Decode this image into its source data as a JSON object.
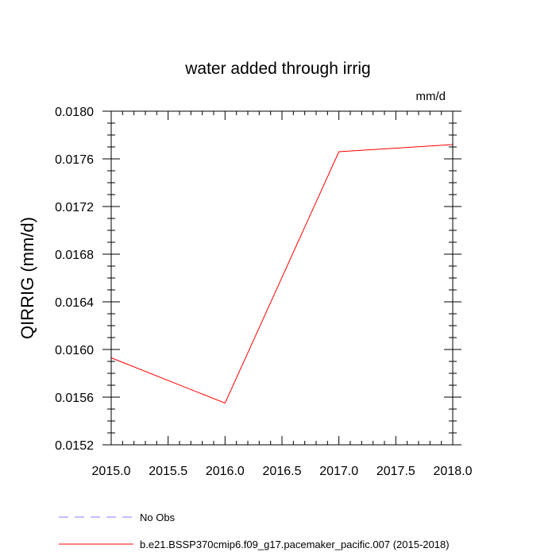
{
  "chart_data": {
    "type": "line",
    "title": "water added through irrig",
    "units": "mm/d",
    "xlabel": "",
    "ylabel": "QIRRIG  (mm/d)",
    "xlim": [
      2015.0,
      2018.0
    ],
    "ylim": [
      0.0152,
      0.018
    ],
    "x_major_ticks": [
      2015.0,
      2015.5,
      2016.0,
      2016.5,
      2017.0,
      2017.5,
      2018.0
    ],
    "x_tick_labels": [
      "2015.0",
      "2015.5",
      "2016.0",
      "2016.5",
      "2017.0",
      "2017.5",
      "2018.0"
    ],
    "y_major_ticks": [
      0.0152,
      0.0156,
      0.016,
      0.0164,
      0.0168,
      0.0172,
      0.0176,
      0.018
    ],
    "y_tick_labels": [
      "0.0152",
      "0.0156",
      "0.0160",
      "0.0164",
      "0.0168",
      "0.0172",
      "0.0176",
      "0.0180"
    ],
    "grid": false,
    "legend_position": "bottom",
    "series": [
      {
        "name": "No Obs",
        "color": "#7f7fff",
        "style": "dashed",
        "x": [],
        "values": []
      },
      {
        "name": "b.e21.BSSP370cmip6.f09_g17.pacemaker_pacific.007 (2015-2018)",
        "color": "#ff0000",
        "style": "solid",
        "x": [
          2015.0,
          2016.0,
          2017.0,
          2018.0
        ],
        "values": [
          0.01593,
          0.01555,
          0.01766,
          0.01772
        ]
      }
    ]
  }
}
